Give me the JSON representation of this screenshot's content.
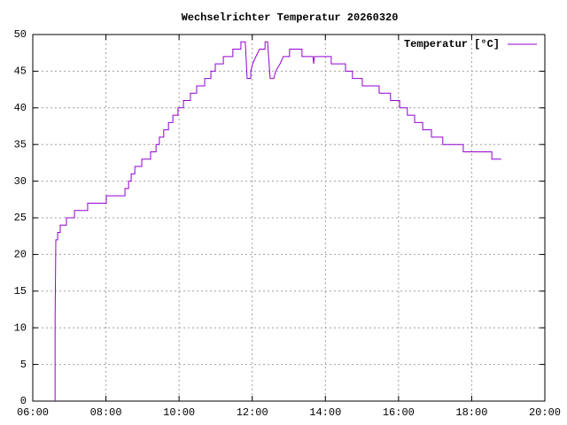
{
  "chart_data": {
    "type": "line",
    "title": "Wechselrichter Temperatur 20260320",
    "series": [
      {
        "name": "Temperatur [°C]",
        "color": "#9400d3",
        "x": [
          6.61,
          6.61,
          6.63,
          6.68,
          6.68,
          6.75,
          6.75,
          6.92,
          6.92,
          7.14,
          7.14,
          7.5,
          7.5,
          8.01,
          8.01,
          8.52,
          8.52,
          8.62,
          8.62,
          8.69,
          8.69,
          8.79,
          8.79,
          8.98,
          8.98,
          9.22,
          9.22,
          9.37,
          9.37,
          9.46,
          9.46,
          9.58,
          9.58,
          9.71,
          9.71,
          9.83,
          9.83,
          9.97,
          9.97,
          10.12,
          10.12,
          10.31,
          10.31,
          10.48,
          10.48,
          10.7,
          10.7,
          10.87,
          10.87,
          10.99,
          10.99,
          11.21,
          11.21,
          11.47,
          11.47,
          11.69,
          11.69,
          11.81,
          11.86,
          11.96,
          11.96,
          12.01,
          12.1,
          12.2,
          12.35,
          12.35,
          12.42,
          12.49,
          12.59,
          12.64,
          12.76,
          12.85,
          13.02,
          13.02,
          13.36,
          13.36,
          13.66,
          13.68,
          13.7,
          14.16,
          14.16,
          14.55,
          14.55,
          14.74,
          14.74,
          15.01,
          15.01,
          15.47,
          15.47,
          15.78,
          15.78,
          16.03,
          16.03,
          16.24,
          16.24,
          16.44,
          16.44,
          16.66,
          16.66,
          16.9,
          16.9,
          17.21,
          17.21,
          17.77,
          17.77,
          18.55,
          18.55,
          18.81
        ],
        "values": [
          0,
          11,
          22,
          22,
          23,
          23,
          24,
          24,
          25,
          25,
          26,
          26,
          27,
          27,
          28,
          28,
          29,
          29,
          30,
          30,
          31,
          31,
          32,
          32,
          33,
          33,
          34,
          34,
          35,
          35,
          36,
          36,
          37,
          37,
          38,
          38,
          39,
          39,
          40,
          40,
          41,
          41,
          42,
          42,
          43,
          43,
          44,
          44,
          45,
          45,
          46,
          46,
          47,
          47,
          48,
          48,
          49,
          49,
          44,
          44,
          45,
          46,
          47,
          48,
          48,
          49,
          49,
          44,
          44,
          45,
          46,
          47,
          47,
          48,
          48,
          47,
          47,
          46,
          47,
          47,
          46,
          46,
          45,
          45,
          44,
          44,
          43,
          43,
          42,
          42,
          41,
          41,
          40,
          40,
          39,
          39,
          38,
          38,
          37,
          37,
          36,
          36,
          35,
          35,
          34,
          34,
          33,
          33
        ]
      }
    ],
    "xlim": [
      6,
      20
    ],
    "xticks": [
      {
        "value": 6,
        "label": "06:00"
      },
      {
        "value": 8,
        "label": "08:00"
      },
      {
        "value": 10,
        "label": "10:00"
      },
      {
        "value": 12,
        "label": "12:00"
      },
      {
        "value": 14,
        "label": "14:00"
      },
      {
        "value": 16,
        "label": "16:00"
      },
      {
        "value": 18,
        "label": "18:00"
      },
      {
        "value": 20,
        "label": "20:00"
      }
    ],
    "ylim": [
      0,
      50
    ],
    "yticks": [
      0,
      5,
      10,
      15,
      20,
      25,
      30,
      35,
      40,
      45,
      50
    ],
    "grid": true,
    "legend": "top-right"
  }
}
